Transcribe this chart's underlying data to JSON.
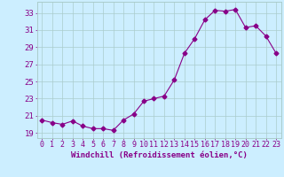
{
  "x": [
    0,
    1,
    2,
    3,
    4,
    5,
    6,
    7,
    8,
    9,
    10,
    11,
    12,
    13,
    14,
    15,
    16,
    17,
    18,
    19,
    20,
    21,
    22,
    23
  ],
  "y": [
    20.5,
    20.2,
    20.0,
    20.4,
    19.8,
    19.5,
    19.5,
    19.3,
    20.5,
    21.2,
    22.7,
    23.0,
    23.3,
    25.2,
    28.3,
    30.0,
    32.2,
    33.3,
    33.2,
    33.4,
    31.3,
    31.5,
    30.3,
    28.3
  ],
  "line_color": "#880088",
  "marker": "D",
  "marker_size": 2.5,
  "bg_color": "#cceeff",
  "grid_color": "#aacccc",
  "xlabel": "Windchill (Refroidissement éolien,°C)",
  "ylabel_ticks": [
    19,
    21,
    23,
    25,
    27,
    29,
    31,
    33
  ],
  "xtick_labels": [
    "0",
    "1",
    "2",
    "3",
    "4",
    "5",
    "6",
    "7",
    "8",
    "9",
    "10",
    "11",
    "12",
    "13",
    "14",
    "15",
    "16",
    "17",
    "18",
    "19",
    "20",
    "21",
    "22",
    "23"
  ],
  "ylim": [
    18.4,
    34.3
  ],
  "xlim": [
    -0.5,
    23.5
  ],
  "tick_color": "#880088",
  "label_color": "#880088",
  "font_size_xlabel": 6.5,
  "font_size_yticks": 6.5,
  "font_size_xticks": 6.0
}
